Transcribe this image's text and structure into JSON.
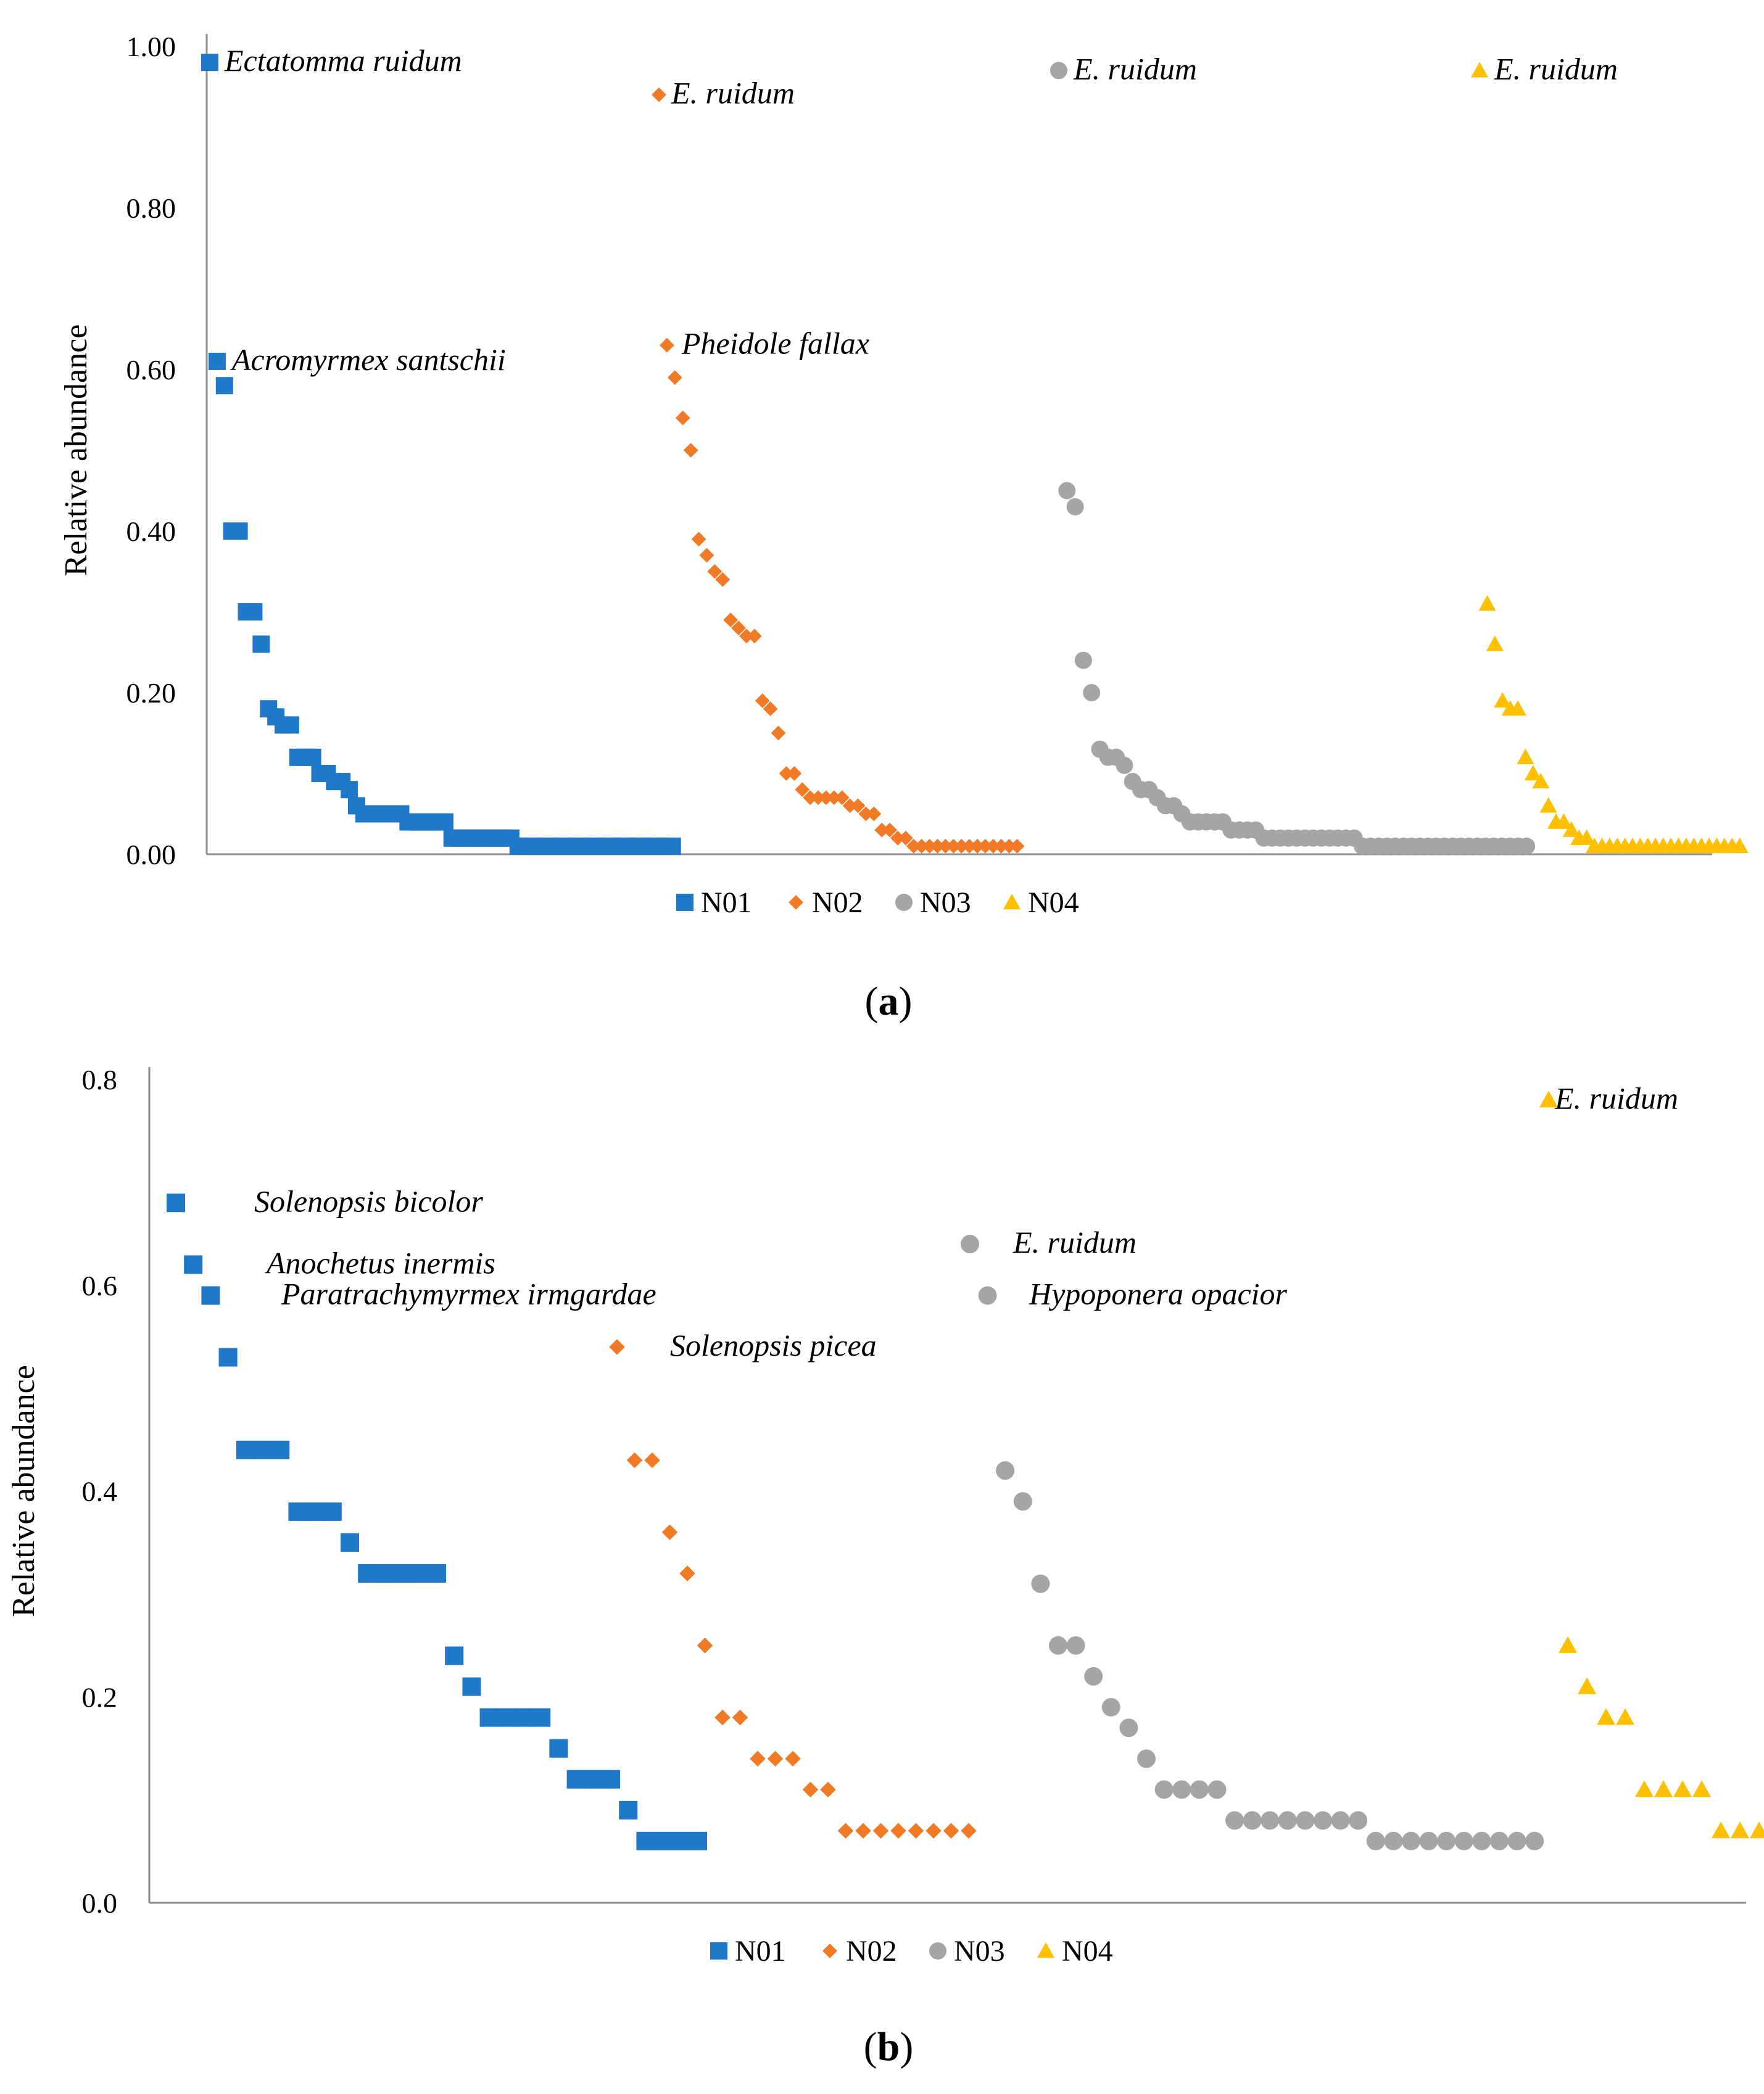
{
  "colors": {
    "N01": "#1f78c8",
    "N02": "#f07a25",
    "N03": "#a5a5a5",
    "N04": "#ffc000"
  },
  "panel_labels": {
    "a": "a",
    "b": "b"
  },
  "chart_data": [
    {
      "type": "scatter",
      "panel": "a",
      "ylabel": "Relative abundance",
      "xlabel": "",
      "ylim": [
        0,
        1
      ],
      "yticks": [
        "0.00",
        "0.20",
        "0.40",
        "0.60",
        "0.80",
        "1.00"
      ],
      "legend": [
        "N01",
        "N02",
        "N03",
        "N04"
      ],
      "series": [
        {
          "name": "N01",
          "marker": "square",
          "values": [
            0.98,
            0.61,
            0.58,
            0.4,
            0.4,
            0.3,
            0.3,
            0.26,
            0.18,
            0.17,
            0.16,
            0.16,
            0.12,
            0.12,
            0.12,
            0.1,
            0.1,
            0.09,
            0.09,
            0.08,
            0.06,
            0.05,
            0.05,
            0.05,
            0.05,
            0.05,
            0.05,
            0.04,
            0.04,
            0.04,
            0.04,
            0.04,
            0.04,
            0.02,
            0.02,
            0.02,
            0.02,
            0.02,
            0.02,
            0.02,
            0.02,
            0.02,
            0.01,
            0.01,
            0.01,
            0.01,
            0.01,
            0.01,
            0.01,
            0.01,
            0.01,
            0.01,
            0.01,
            0.01,
            0.01,
            0.01,
            0.01,
            0.01,
            0.01,
            0.01,
            0.01,
            0.01,
            0.01,
            0.01
          ]
        },
        {
          "name": "N02",
          "marker": "diamond",
          "values": [
            0.94,
            0.63,
            0.59,
            0.54,
            0.5,
            0.39,
            0.37,
            0.35,
            0.34,
            0.29,
            0.28,
            0.27,
            0.27,
            0.19,
            0.18,
            0.15,
            0.1,
            0.1,
            0.08,
            0.07,
            0.07,
            0.07,
            0.07,
            0.07,
            0.06,
            0.06,
            0.05,
            0.05,
            0.03,
            0.03,
            0.02,
            0.02,
            0.01,
            0.01,
            0.01,
            0.01,
            0.01,
            0.01,
            0.01,
            0.01,
            0.01,
            0.01,
            0.01,
            0.01,
            0.01,
            0.01
          ]
        },
        {
          "name": "N03",
          "marker": "circle",
          "values": [
            0.97,
            0.45,
            0.43,
            0.24,
            0.2,
            0.13,
            0.12,
            0.12,
            0.11,
            0.09,
            0.08,
            0.08,
            0.07,
            0.06,
            0.06,
            0.05,
            0.04,
            0.04,
            0.04,
            0.04,
            0.04,
            0.03,
            0.03,
            0.03,
            0.03,
            0.02,
            0.02,
            0.02,
            0.02,
            0.02,
            0.02,
            0.02,
            0.02,
            0.02,
            0.02,
            0.02,
            0.02,
            0.01,
            0.01,
            0.01,
            0.01,
            0.01,
            0.01,
            0.01,
            0.01,
            0.01,
            0.01,
            0.01,
            0.01,
            0.01,
            0.01,
            0.01,
            0.01,
            0.01,
            0.01,
            0.01,
            0.01,
            0.01
          ]
        },
        {
          "name": "N04",
          "marker": "triangle",
          "values": [
            0.97,
            0.31,
            0.26,
            0.19,
            0.18,
            0.18,
            0.12,
            0.1,
            0.09,
            0.06,
            0.04,
            0.04,
            0.03,
            0.02,
            0.02,
            0.01,
            0.01,
            0.01,
            0.01,
            0.01,
            0.01,
            0.01,
            0.01,
            0.01,
            0.01,
            0.01,
            0.01,
            0.01,
            0.01,
            0.01,
            0.01,
            0.01,
            0.01,
            0.01,
            0.01
          ]
        }
      ],
      "annotations": [
        {
          "text": "Ectatomma ruidum",
          "series": "N01",
          "index": 0
        },
        {
          "text": "Acromyrmex santschii",
          "series": "N01",
          "index": 1
        },
        {
          "text": "E. ruidum",
          "series": "N02",
          "index": 0
        },
        {
          "text": "Pheidole fallax",
          "series": "N02",
          "index": 1
        },
        {
          "text": "E. ruidum",
          "series": "N03",
          "index": 0
        },
        {
          "text": "E. ruidum",
          "series": "N04",
          "index": 0
        }
      ]
    },
    {
      "type": "scatter",
      "panel": "b",
      "ylabel": "Relative abundance",
      "xlabel": "",
      "ylim": [
        0,
        0.8
      ],
      "yticks": [
        "0.0",
        "0.2",
        "0.4",
        "0.6",
        "0.8"
      ],
      "legend": [
        "N01",
        "N02",
        "N03",
        "N04"
      ],
      "series": [
        {
          "name": "N01",
          "marker": "square",
          "values": [
            0.68,
            0.62,
            0.59,
            0.53,
            0.44,
            0.44,
            0.44,
            0.38,
            0.38,
            0.38,
            0.35,
            0.32,
            0.32,
            0.32,
            0.32,
            0.32,
            0.24,
            0.21,
            0.18,
            0.18,
            0.18,
            0.18,
            0.15,
            0.12,
            0.12,
            0.12,
            0.09,
            0.06,
            0.06,
            0.06,
            0.06
          ]
        },
        {
          "name": "N02",
          "marker": "diamond",
          "values": [
            0.54,
            0.43,
            0.43,
            0.36,
            0.32,
            0.25,
            0.18,
            0.18,
            0.14,
            0.14,
            0.14,
            0.11,
            0.11,
            0.07,
            0.07,
            0.07,
            0.07,
            0.07,
            0.07,
            0.07,
            0.07
          ]
        },
        {
          "name": "N03",
          "marker": "circle",
          "values": [
            0.64,
            0.59,
            0.42,
            0.39,
            0.31,
            0.25,
            0.25,
            0.22,
            0.19,
            0.17,
            0.14,
            0.11,
            0.11,
            0.11,
            0.11,
            0.08,
            0.08,
            0.08,
            0.08,
            0.08,
            0.08,
            0.08,
            0.08,
            0.06,
            0.06,
            0.06,
            0.06,
            0.06,
            0.06,
            0.06,
            0.06,
            0.06,
            0.06
          ]
        },
        {
          "name": "N04",
          "marker": "triangle",
          "values": [
            0.78,
            0.25,
            0.21,
            0.18,
            0.18,
            0.11,
            0.11,
            0.11,
            0.11,
            0.07,
            0.07,
            0.07
          ]
        }
      ],
      "annotations": [
        {
          "text": "Solenopsis bicolor",
          "series": "N01",
          "index": 0
        },
        {
          "text": "Anochetus inermis",
          "series": "N01",
          "index": 1
        },
        {
          "text": "Paratrachymyrmex irmgardae",
          "series": "N01",
          "index": 2
        },
        {
          "text": "Solenopsis picea",
          "series": "N02",
          "index": 0
        },
        {
          "text": "E. ruidum",
          "series": "N03",
          "index": 0
        },
        {
          "text": "Hypoponera opacior",
          "series": "N03",
          "index": 1
        },
        {
          "text": "E. ruidum",
          "series": "N04",
          "index": 0
        }
      ]
    }
  ]
}
